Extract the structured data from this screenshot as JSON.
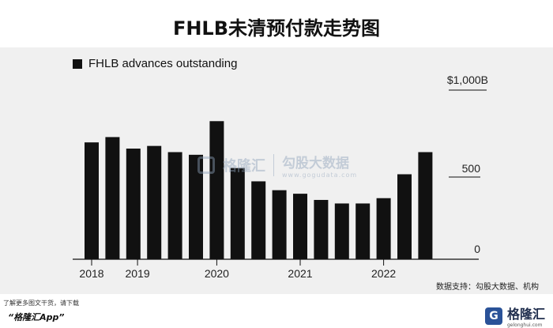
{
  "page": {
    "title": "FHLB未清预付款走势图",
    "source": "数据支持：勾股大数据、机构",
    "watermark": {
      "name": "格隆汇",
      "name2": "勾股大数据",
      "url": "www.gogudata.com"
    },
    "footer": {
      "line1": "了解更多图文干货，请下载",
      "line2": "“格隆汇App”"
    },
    "logo": {
      "mark": "G",
      "name": "格隆汇",
      "url": "gelonghui.com"
    }
  },
  "chart_data": {
    "type": "bar",
    "title": "FHLB未清预付款走势图",
    "legend": [
      "FHLB advances outstanding"
    ],
    "legend_position": "top-left",
    "series": [
      {
        "name": "FHLB advances outstanding",
        "values": [
          660,
          690,
          625,
          640,
          605,
          590,
          780,
          515,
          440,
          390,
          370,
          335,
          315,
          315,
          345,
          480,
          605
        ]
      }
    ],
    "color": "#111111",
    "ylim": [
      0,
      1000
    ],
    "y_ticks": [
      0,
      500
    ],
    "y_top_label": "$1,000B",
    "y_axis_position": "right",
    "x_ticks": [
      {
        "label": "2018",
        "index": 0
      },
      {
        "label": "2019",
        "index": 2.2
      },
      {
        "label": "2020",
        "index": 6
      },
      {
        "label": "2021",
        "index": 10
      },
      {
        "label": "2022",
        "index": 14
      }
    ],
    "grid": false
  }
}
